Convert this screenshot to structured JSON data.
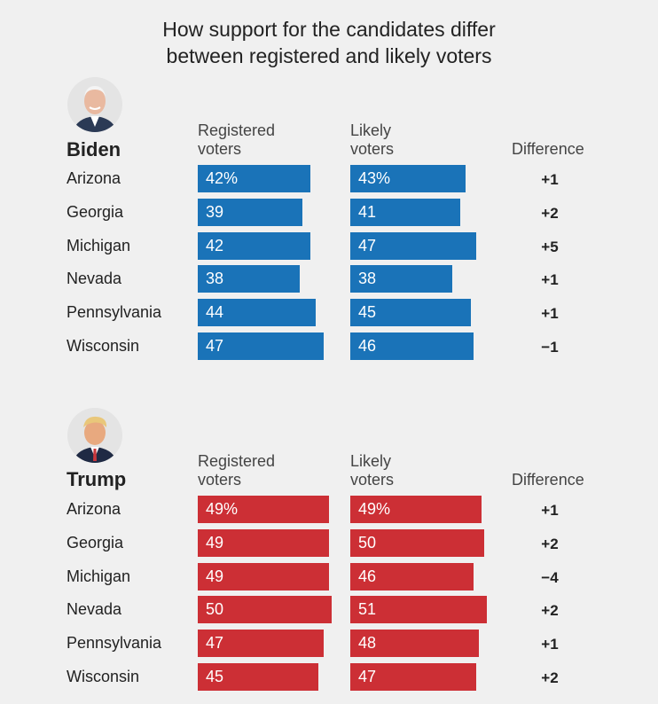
{
  "title_line1": "How support for the candidates differ",
  "title_line2": "between registered and likely voters",
  "column_headers": {
    "registered_line1": "Registered",
    "registered_line2": "voters",
    "likely_line1": "Likely",
    "likely_line2": "voters",
    "difference": "Difference"
  },
  "colors": {
    "biden": "#1a73b8",
    "trump": "#cc2f35"
  },
  "chart_data": [
    {
      "type": "bar",
      "candidate": "Biden",
      "avatar_icon": "biden-portrait-icon",
      "categories": [
        "Arizona",
        "Georgia",
        "Michigan",
        "Nevada",
        "Pennsylvania",
        "Wisconsin"
      ],
      "series": [
        {
          "name": "Registered voters",
          "values": [
            42,
            39,
            42,
            38,
            44,
            47
          ],
          "labels": [
            "42%",
            "39",
            "42",
            "38",
            "44",
            "47"
          ]
        },
        {
          "name": "Likely voters",
          "values": [
            43,
            41,
            47,
            38,
            45,
            46
          ],
          "labels": [
            "43%",
            "41",
            "47",
            "38",
            "45",
            "46"
          ]
        }
      ],
      "difference": [
        "+1",
        "+2",
        "+5",
        "+1",
        "+1",
        "−1"
      ]
    },
    {
      "type": "bar",
      "candidate": "Trump",
      "avatar_icon": "trump-portrait-icon",
      "categories": [
        "Arizona",
        "Georgia",
        "Michigan",
        "Nevada",
        "Pennsylvania",
        "Wisconsin"
      ],
      "series": [
        {
          "name": "Registered voters",
          "values": [
            49,
            49,
            49,
            50,
            47,
            45
          ],
          "labels": [
            "49%",
            "49",
            "49",
            "50",
            "47",
            "45"
          ]
        },
        {
          "name": "Likely voters",
          "values": [
            49,
            50,
            46,
            51,
            48,
            47
          ],
          "labels": [
            "49%",
            "50",
            "46",
            "51",
            "48",
            "47"
          ]
        }
      ],
      "difference": [
        "+1",
        "+2",
        "−4",
        "+2",
        "+1",
        "+2"
      ]
    }
  ]
}
